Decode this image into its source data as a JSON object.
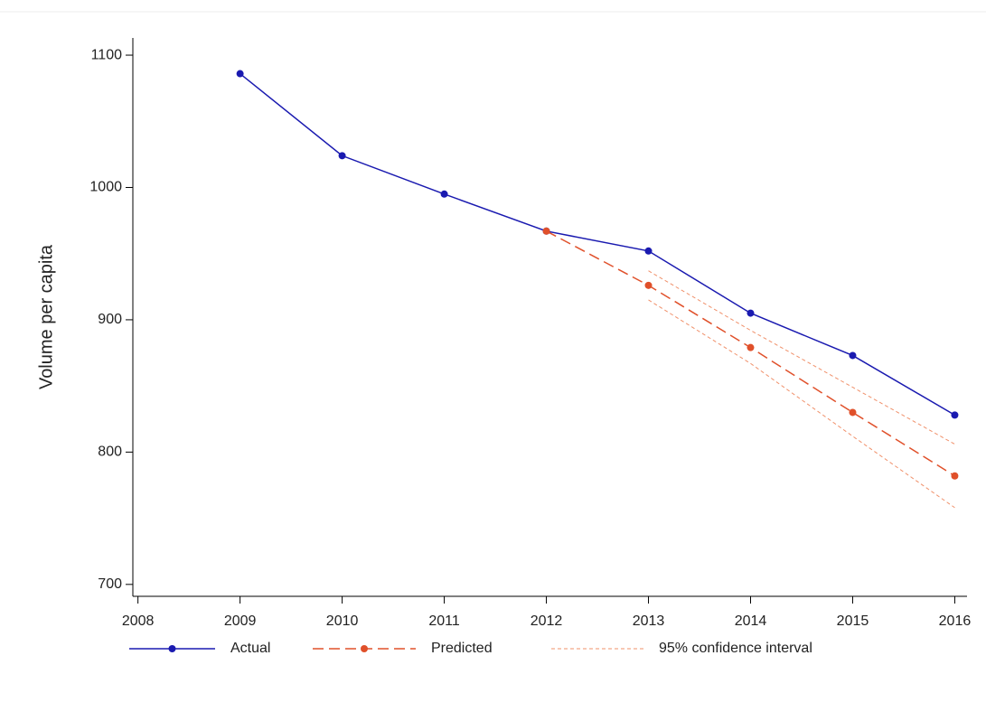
{
  "chart_data": {
    "type": "line",
    "y_label": "Volume per capita",
    "x": [
      2009,
      2010,
      2011,
      2012,
      2013,
      2014,
      2015,
      2016
    ],
    "series": [
      {
        "name": "Actual",
        "color": "#1a1ab0",
        "style": "solid",
        "marker": true,
        "values": [
          1086,
          1024,
          995,
          967,
          952,
          905,
          873,
          828
        ]
      },
      {
        "name": "Predicted",
        "color": "#e0502a",
        "style": "dashed",
        "marker": true,
        "values": [
          null,
          null,
          null,
          967,
          926,
          879,
          830,
          782
        ]
      },
      {
        "name": "95% confidence interval",
        "color": "#f0906a",
        "style": "dotted",
        "marker": false,
        "lower": [
          null,
          null,
          null,
          null,
          915,
          867,
          812,
          758
        ],
        "upper": [
          null,
          null,
          null,
          null,
          937,
          892,
          849,
          806
        ]
      }
    ],
    "xlim": [
      2007.95,
      2016.12
    ],
    "ylim": [
      691,
      1113
    ],
    "xticks": [
      2008,
      2009,
      2010,
      2011,
      2012,
      2013,
      2014,
      2015,
      2016
    ],
    "yticks": [
      700,
      800,
      900,
      1000,
      1100
    ],
    "legend": "bottom"
  }
}
